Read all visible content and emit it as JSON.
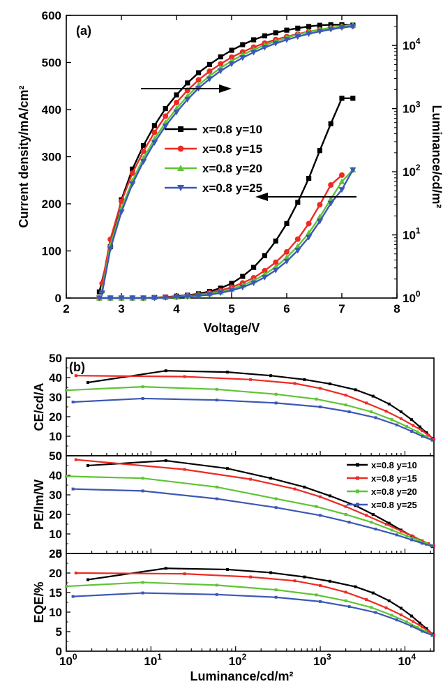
{
  "colors": {
    "x=0.8 y=10": "#000000",
    "x=0.8 y=15": "#ee2a24",
    "x=0.8 y=20": "#5fc435",
    "x=0.8 y=25": "#3b58b6"
  },
  "chart_data": [
    {
      "id": "panel-a",
      "type": "line",
      "panel_label": "(a)",
      "xlabel": "Voltage/V",
      "ylabel": "Current density/mA/cm²",
      "y2label": "Luminance/cd/m²",
      "xlim": [
        2,
        8
      ],
      "ylim": [
        0,
        600
      ],
      "y2lim": [
        1,
        30000
      ],
      "y2scale": "log",
      "xticks": [
        "2",
        "3",
        "4",
        "5",
        "6",
        "7",
        "8"
      ],
      "yticks": [
        "0",
        "100",
        "200",
        "300",
        "400",
        "500",
        "600"
      ],
      "y2ticks": [
        {
          "base": "10",
          "exp": "0",
          "v": 1
        },
        {
          "base": "10",
          "exp": "1",
          "v": 10
        },
        {
          "base": "10",
          "exp": "2",
          "v": 100
        },
        {
          "base": "10",
          "exp": "3",
          "v": 1000
        },
        {
          "base": "10",
          "exp": "4",
          "v": 10000
        }
      ],
      "legend_position": "center-right",
      "annotations": [
        "arrow pointing right to luminance axis (upper curves)",
        "arrow pointing left to current density axis (lower curves)"
      ],
      "series": [
        {
          "name": "x=0.8 y=10",
          "marker": "square",
          "axis": "y",
          "x": [
            2.6,
            2.8,
            3.0,
            3.2,
            3.4,
            3.6,
            3.8,
            4.0,
            4.2,
            4.4,
            4.6,
            4.8,
            5.0,
            5.2,
            5.4,
            5.6,
            5.8,
            6.0,
            6.2,
            6.4,
            6.6,
            6.8,
            7.0,
            7.2
          ],
          "y": [
            0,
            0,
            0,
            0,
            0,
            1,
            2,
            4,
            6,
            9,
            14,
            21,
            31,
            46,
            65,
            90,
            121,
            158,
            203,
            254,
            313,
            370,
            424,
            424
          ]
        },
        {
          "name": "x=0.8 y=15",
          "marker": "circle",
          "axis": "y",
          "x": [
            2.6,
            2.8,
            3.0,
            3.2,
            3.4,
            3.6,
            3.8,
            4.0,
            4.2,
            4.4,
            4.6,
            4.8,
            5.0,
            5.2,
            5.4,
            5.6,
            5.8,
            6.0,
            6.2,
            6.4,
            6.6,
            6.8,
            7.0
          ],
          "y": [
            0,
            0,
            0,
            0,
            0,
            1,
            2,
            3,
            5,
            7,
            11,
            16,
            23,
            32,
            43,
            58,
            76,
            98,
            125,
            158,
            198,
            240,
            261
          ]
        },
        {
          "name": "x=0.8 y=20",
          "marker": "triangle-up",
          "axis": "y",
          "x": [
            2.6,
            2.8,
            3.0,
            3.2,
            3.4,
            3.6,
            3.8,
            4.0,
            4.2,
            4.4,
            4.6,
            4.8,
            5.0,
            5.2,
            5.4,
            5.6,
            5.8,
            6.0,
            6.2,
            6.4,
            6.6,
            6.8,
            7.0,
            7.2
          ],
          "y": [
            0,
            0,
            0,
            0,
            0,
            1,
            1,
            2,
            4,
            6,
            9,
            13,
            19,
            27,
            37,
            50,
            66,
            86,
            110,
            138,
            172,
            210,
            247,
            272
          ]
        },
        {
          "name": "x=0.8 y=25",
          "marker": "triangle-down",
          "axis": "y",
          "x": [
            2.6,
            2.8,
            3.0,
            3.2,
            3.4,
            3.6,
            3.8,
            4.0,
            4.2,
            4.4,
            4.6,
            4.8,
            5.0,
            5.2,
            5.4,
            5.6,
            5.8,
            6.0,
            6.2,
            6.4,
            6.6,
            6.8,
            7.0,
            7.2
          ],
          "y": [
            0,
            0,
            0,
            0,
            0,
            0,
            1,
            2,
            3,
            5,
            7,
            11,
            16,
            23,
            32,
            44,
            59,
            78,
            101,
            129,
            163,
            201,
            230,
            272
          ]
        },
        {
          "name": "x=0.8 y=10",
          "marker": "square",
          "axis": "y2",
          "x": [
            2.6,
            2.8,
            3.0,
            3.2,
            3.4,
            3.6,
            3.8,
            4.0,
            4.2,
            4.4,
            4.6,
            4.8,
            5.0,
            5.2,
            5.4,
            5.6,
            5.8,
            6.0,
            6.2,
            6.4,
            6.6,
            6.8,
            7.0,
            7.2
          ],
          "y": [
            1.25,
            6.5,
            36,
            110,
            260,
            540,
            1000,
            1650,
            2550,
            3700,
            5000,
            6600,
            8400,
            10300,
            12300,
            14200,
            15900,
            17500,
            18800,
            20000,
            20900,
            21300,
            21300,
            21000
          ]
        },
        {
          "name": "x=0.8 y=15",
          "marker": "circle",
          "axis": "y2",
          "x": [
            2.65,
            2.8,
            3.0,
            3.2,
            3.4,
            3.6,
            3.8,
            4.0,
            4.2,
            4.4,
            4.6,
            4.8,
            5.0,
            5.2,
            5.4,
            5.6,
            5.8,
            6.0,
            6.2,
            6.4,
            6.6,
            6.8,
            7.0,
            7.2
          ],
          "y": [
            1.7,
            8.5,
            34,
            95,
            210,
            420,
            760,
            1250,
            1950,
            2850,
            3900,
            5100,
            6500,
            7900,
            9400,
            10900,
            12400,
            13800,
            15200,
            16600,
            17800,
            18900,
            19800,
            20400
          ]
        },
        {
          "name": "x=0.8 y=20",
          "marker": "triangle-up",
          "axis": "y2",
          "x": [
            2.65,
            2.8,
            3.0,
            3.2,
            3.4,
            3.6,
            3.8,
            4.0,
            4.2,
            4.4,
            4.6,
            4.8,
            5.0,
            5.2,
            5.4,
            5.6,
            5.8,
            6.0,
            6.2,
            6.4,
            6.6,
            6.8,
            7.0,
            7.2
          ],
          "y": [
            1.3,
            6.8,
            26,
            72,
            165,
            330,
            600,
            1000,
            1580,
            2350,
            3300,
            4400,
            5700,
            7100,
            8600,
            10100,
            11700,
            13300,
            14900,
            16400,
            17800,
            19100,
            20200,
            21000
          ]
        },
        {
          "name": "x=0.8 y=25",
          "marker": "triangle-down",
          "axis": "y2",
          "x": [
            2.65,
            2.8,
            3.0,
            3.2,
            3.4,
            3.6,
            3.8,
            4.0,
            4.2,
            4.4,
            4.6,
            4.8,
            5.0,
            5.2,
            5.4,
            5.6,
            5.8,
            6.0,
            6.2,
            6.4,
            6.6,
            6.8,
            7.0,
            7.2
          ],
          "y": [
            1.2,
            6.0,
            23,
            64,
            145,
            290,
            530,
            880,
            1400,
            2100,
            2950,
            3950,
            5100,
            6400,
            7800,
            9300,
            10800,
            12300,
            13800,
            15300,
            16700,
            18000,
            19200,
            20100
          ]
        }
      ]
    },
    {
      "id": "panel-b-ce",
      "type": "line",
      "panel_label": "(b)",
      "xlabel": "Luminance/cd/m²",
      "ylabel": "CE/cd/A",
      "xscale": "log",
      "xlim": [
        1,
        22000
      ],
      "ylim": [
        0,
        50
      ],
      "yticks": [
        "0",
        "10",
        "20",
        "30",
        "40",
        "50"
      ],
      "series": [
        {
          "name": "x=0.8 y=10",
          "x": [
            1.8,
            15,
            80,
            260,
            650,
            1300,
            2600,
            4200,
            6500,
            9000,
            12000,
            15000,
            18000,
            21000
          ],
          "y": [
            37.5,
            43.5,
            42.8,
            41.0,
            39.0,
            36.8,
            33.8,
            30.5,
            26.5,
            22.5,
            18.5,
            14.8,
            11.8,
            9.0
          ]
        },
        {
          "name": "x=0.8 y=15",
          "x": [
            1.3,
            25,
            150,
            500,
            1000,
            2000,
            3500,
            6000,
            9000,
            12500,
            16000,
            19000,
            22000
          ],
          "y": [
            41.0,
            40.5,
            39.0,
            37.0,
            34.5,
            31.0,
            27.0,
            22.8,
            19.0,
            15.5,
            12.8,
            10.5,
            8.5
          ]
        },
        {
          "name": "x=0.8 y=20",
          "x": [
            1.0,
            8,
            60,
            300,
            900,
            2000,
            4000,
            7000,
            10500,
            14000,
            17500,
            21000
          ],
          "y": [
            33.5,
            35.3,
            34.0,
            31.5,
            29.0,
            26.0,
            22.5,
            18.5,
            15.0,
            12.3,
            10.0,
            8.0
          ]
        },
        {
          "name": "x=0.8 y=25",
          "x": [
            1.2,
            8,
            60,
            300,
            1000,
            2200,
            4500,
            8000,
            12000,
            16000,
            21000
          ],
          "y": [
            27.5,
            29.3,
            28.5,
            27.0,
            25.0,
            22.5,
            19.5,
            15.8,
            12.5,
            10.0,
            8.0
          ]
        }
      ]
    },
    {
      "id": "panel-b-pe",
      "type": "line",
      "xlabel": "Luminance/cd/m²",
      "ylabel": "PE/lm/W",
      "xscale": "log",
      "xlim": [
        1,
        22000
      ],
      "ylim": [
        0,
        50
      ],
      "yticks": [
        "0",
        "10",
        "20",
        "30",
        "40",
        "50"
      ],
      "legend_position": "top-right",
      "series": [
        {
          "name": "x=0.8 y=10",
          "x": [
            1.8,
            15,
            80,
            260,
            650,
            1300,
            2600,
            4200,
            6500,
            9000,
            12000,
            15000,
            18000,
            21000
          ],
          "y": [
            45.0,
            47.5,
            43.5,
            38.5,
            34.0,
            29.5,
            24.5,
            20.0,
            15.5,
            12.0,
            9.0,
            6.5,
            4.8,
            3.5
          ]
        },
        {
          "name": "x=0.8 y=15",
          "x": [
            1.3,
            25,
            150,
            500,
            1000,
            2000,
            3500,
            6000,
            9000,
            12500,
            16000,
            19000,
            22000
          ],
          "y": [
            48.0,
            43.0,
            38.0,
            33.0,
            29.0,
            24.0,
            19.5,
            15.0,
            11.5,
            8.8,
            6.5,
            5.0,
            3.8
          ]
        },
        {
          "name": "x=0.8 y=20",
          "x": [
            1.0,
            8,
            60,
            300,
            900,
            2000,
            4000,
            7000,
            10500,
            14000,
            17500,
            21000
          ],
          "y": [
            39.5,
            38.5,
            34.0,
            28.0,
            24.0,
            20.0,
            16.0,
            12.0,
            9.0,
            7.0,
            5.2,
            4.0
          ]
        },
        {
          "name": "x=0.8 y=25",
          "x": [
            1.2,
            8,
            60,
            300,
            1000,
            2200,
            4500,
            8000,
            12000,
            16000,
            21000
          ],
          "y": [
            33.0,
            32.0,
            28.0,
            23.5,
            19.5,
            16.0,
            12.5,
            9.5,
            7.0,
            5.2,
            3.8
          ]
        }
      ]
    },
    {
      "id": "panel-b-eqe",
      "type": "line",
      "xlabel": "Luminance/cd/m²",
      "ylabel": "EQE/%",
      "xscale": "log",
      "xlim": [
        1,
        22000
      ],
      "ylim": [
        0,
        25
      ],
      "yticks": [
        "0",
        "5",
        "10",
        "15",
        "20",
        "25"
      ],
      "xticks": [
        {
          "base": "10",
          "exp": "0",
          "v": 1
        },
        {
          "base": "10",
          "exp": "1",
          "v": 10
        },
        {
          "base": "10",
          "exp": "2",
          "v": 100
        },
        {
          "base": "10",
          "exp": "3",
          "v": 1000
        },
        {
          "base": "10",
          "exp": "4",
          "v": 10000
        }
      ],
      "series": [
        {
          "name": "x=0.8 y=10",
          "x": [
            1.8,
            15,
            80,
            260,
            650,
            1300,
            2600,
            4200,
            6500,
            9000,
            12000,
            15000,
            18000,
            21000
          ],
          "y": [
            18.3,
            21.2,
            20.9,
            20.1,
            19.0,
            17.9,
            16.5,
            14.9,
            12.9,
            11.0,
            9.0,
            7.2,
            5.8,
            4.4
          ]
        },
        {
          "name": "x=0.8 y=15",
          "x": [
            1.3,
            25,
            150,
            500,
            1000,
            2000,
            3500,
            6000,
            9000,
            12500,
            16000,
            19000,
            22000
          ],
          "y": [
            20.0,
            19.8,
            19.0,
            18.0,
            16.8,
            15.1,
            13.2,
            11.1,
            9.3,
            7.6,
            6.2,
            5.1,
            4.1
          ]
        },
        {
          "name": "x=0.8 y=20",
          "x": [
            1.0,
            8,
            60,
            300,
            900,
            2000,
            4000,
            7000,
            10500,
            14000,
            17500,
            21000
          ],
          "y": [
            16.6,
            17.6,
            16.9,
            15.7,
            14.4,
            12.9,
            11.2,
            9.2,
            7.5,
            6.1,
            5.0,
            4.0
          ]
        },
        {
          "name": "x=0.8 y=25",
          "x": [
            1.2,
            8,
            60,
            300,
            1000,
            2200,
            4500,
            8000,
            12000,
            16000,
            21000
          ],
          "y": [
            14.0,
            14.9,
            14.5,
            13.8,
            12.7,
            11.4,
            9.9,
            8.0,
            6.4,
            5.1,
            4.1
          ]
        }
      ]
    }
  ]
}
